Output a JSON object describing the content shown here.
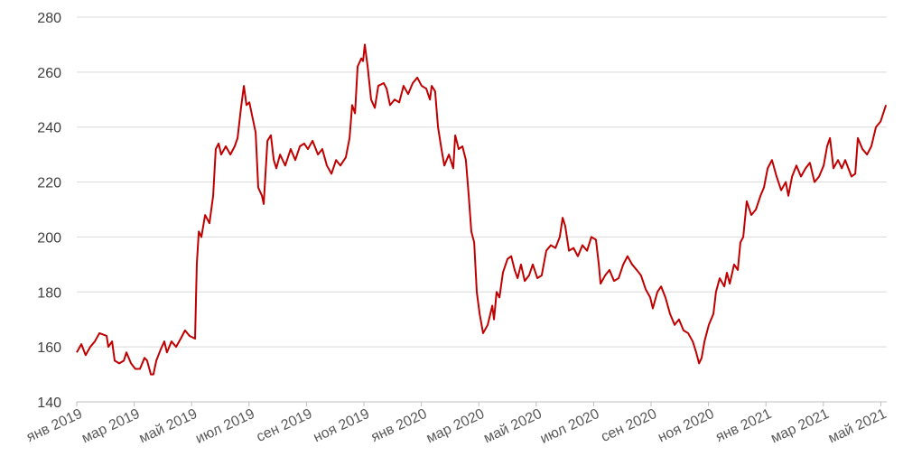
{
  "chart_data": {
    "type": "line",
    "x": [
      0,
      0.16,
      0.31,
      0.47,
      0.63,
      0.79,
      1.04,
      1.1,
      1.23,
      1.32,
      1.48,
      1.64,
      1.73,
      1.89,
      2.04,
      2.2,
      2.36,
      2.45,
      2.58,
      2.67,
      2.77,
      2.92,
      3.05,
      3.14,
      3.3,
      3.46,
      3.62,
      3.77,
      3.93,
      4.12,
      4.18,
      4.25,
      4.34,
      4.47,
      4.62,
      4.75,
      4.84,
      4.94,
      5.03,
      5.19,
      5.35,
      5.5,
      5.6,
      5.72,
      5.82,
      5.91,
      6.01,
      6.13,
      6.23,
      6.32,
      6.45,
      6.51,
      6.64,
      6.76,
      6.86,
      6.95,
      7.08,
      7.26,
      7.45,
      7.61,
      7.77,
      7.92,
      8.05,
      8.21,
      8.4,
      8.55,
      8.71,
      8.87,
      9.03,
      9.18,
      9.37,
      9.5,
      9.59,
      9.69,
      9.78,
      9.91,
      9.97,
      10.03,
      10.13,
      10.25,
      10.38,
      10.5,
      10.69,
      10.79,
      10.91,
      11.07,
      11.23,
      11.38,
      11.54,
      11.7,
      11.86,
      12.01,
      12.17,
      12.3,
      12.36,
      12.48,
      12.58,
      12.7,
      12.8,
      12.96,
      13.11,
      13.18,
      13.3,
      13.43,
      13.55,
      13.65,
      13.74,
      13.84,
      13.93,
      14.03,
      14.15,
      14.31,
      14.47,
      14.53,
      14.62,
      14.72,
      14.84,
      15.0,
      15.13,
      15.25,
      15.35,
      15.47,
      15.6,
      15.75,
      15.88,
      16.04,
      16.19,
      16.35,
      16.51,
      16.67,
      16.82,
      16.92,
      17.01,
      17.14,
      17.3,
      17.45,
      17.61,
      17.77,
      17.92,
      18.08,
      18.18,
      18.24,
      18.4,
      18.55,
      18.71,
      18.87,
      19.03,
      19.18,
      19.34,
      19.5,
      19.65,
      19.81,
      19.97,
      20.06,
      20.22,
      20.35,
      20.5,
      20.66,
      20.82,
      20.97,
      21.13,
      21.29,
      21.45,
      21.57,
      21.67,
      21.76,
      21.86,
      22.01,
      22.17,
      22.26,
      22.39,
      22.55,
      22.64,
      22.74,
      22.89,
      23.02,
      23.11,
      23.21,
      23.33,
      23.49,
      23.65,
      23.81,
      23.93,
      24.06,
      24.21,
      24.37,
      24.53,
      24.69,
      24.78,
      24.91,
      25.06,
      25.22,
      25.38,
      25.53,
      25.69,
      25.85,
      26.01,
      26.13,
      26.23,
      26.35,
      26.51,
      26.64,
      26.76,
      26.98,
      27.11,
      27.2,
      27.36,
      27.52,
      27.67,
      27.83,
      27.99,
      28.18
    ],
    "series": [
      {
        "color": "#c00000",
        "values": [
          158,
          161,
          157,
          160,
          162,
          165,
          164,
          160,
          162,
          155,
          154,
          155,
          158,
          154,
          152,
          152,
          156,
          155,
          150,
          150,
          155,
          159,
          162,
          158,
          162,
          160,
          163,
          166,
          164,
          163,
          190,
          202,
          200,
          208,
          205,
          215,
          232,
          234,
          230,
          233,
          230,
          233,
          236,
          247,
          255,
          248,
          249,
          243,
          238,
          218,
          215,
          212,
          235,
          237,
          228,
          225,
          230,
          226,
          232,
          228,
          233,
          234,
          232,
          235,
          230,
          232,
          226,
          223,
          228,
          226,
          229,
          236,
          248,
          245,
          262,
          265,
          264,
          270,
          262,
          250,
          247,
          255,
          256,
          254,
          248,
          250,
          249,
          255,
          252,
          256,
          258,
          255,
          254,
          250,
          255,
          253,
          240,
          232,
          226,
          230,
          225,
          237,
          232,
          233,
          228,
          215,
          202,
          198,
          180,
          172,
          165,
          168,
          175,
          170,
          180,
          178,
          187,
          192,
          193,
          188,
          185,
          190,
          184,
          186,
          190,
          185,
          186,
          195,
          197,
          196,
          200,
          207,
          204,
          195,
          196,
          193,
          197,
          195,
          200,
          199,
          190,
          183,
          186,
          188,
          184,
          185,
          190,
          193,
          190,
          188,
          186,
          181,
          178,
          174,
          180,
          182,
          178,
          172,
          168,
          170,
          166,
          165,
          162,
          158,
          154,
          156,
          162,
          168,
          172,
          180,
          185,
          182,
          187,
          183,
          190,
          188,
          198,
          200,
          213,
          208,
          210,
          215,
          218,
          225,
          228,
          222,
          217,
          220,
          215,
          222,
          226,
          222,
          225,
          227,
          220,
          222,
          226,
          233,
          236,
          225,
          228,
          225,
          228,
          222,
          223,
          236,
          232,
          230,
          233,
          240,
          242,
          248
        ]
      }
    ],
    "xlim": [
      0,
      28.2
    ],
    "xticks": [
      {
        "value": 0,
        "label": "янв 2019"
      },
      {
        "value": 2,
        "label": "мар 2019"
      },
      {
        "value": 4,
        "label": "май 2019"
      },
      {
        "value": 6,
        "label": "июл 2019"
      },
      {
        "value": 8,
        "label": "сен 2019"
      },
      {
        "value": 10,
        "label": "ноя 2019"
      },
      {
        "value": 12,
        "label": "янв 2020"
      },
      {
        "value": 14,
        "label": "мар 2020"
      },
      {
        "value": 16,
        "label": "май 2020"
      },
      {
        "value": 18,
        "label": "июл 2020"
      },
      {
        "value": 20,
        "label": "сен 2020"
      },
      {
        "value": 22,
        "label": "ноя 2020"
      },
      {
        "value": 24,
        "label": "янв 2021"
      },
      {
        "value": 26,
        "label": "мар 2021"
      },
      {
        "value": 28,
        "label": "май 2021"
      }
    ],
    "ylim": [
      140,
      280
    ],
    "yticks": [
      140,
      160,
      180,
      200,
      220,
      240,
      260,
      280
    ],
    "grid": true
  }
}
